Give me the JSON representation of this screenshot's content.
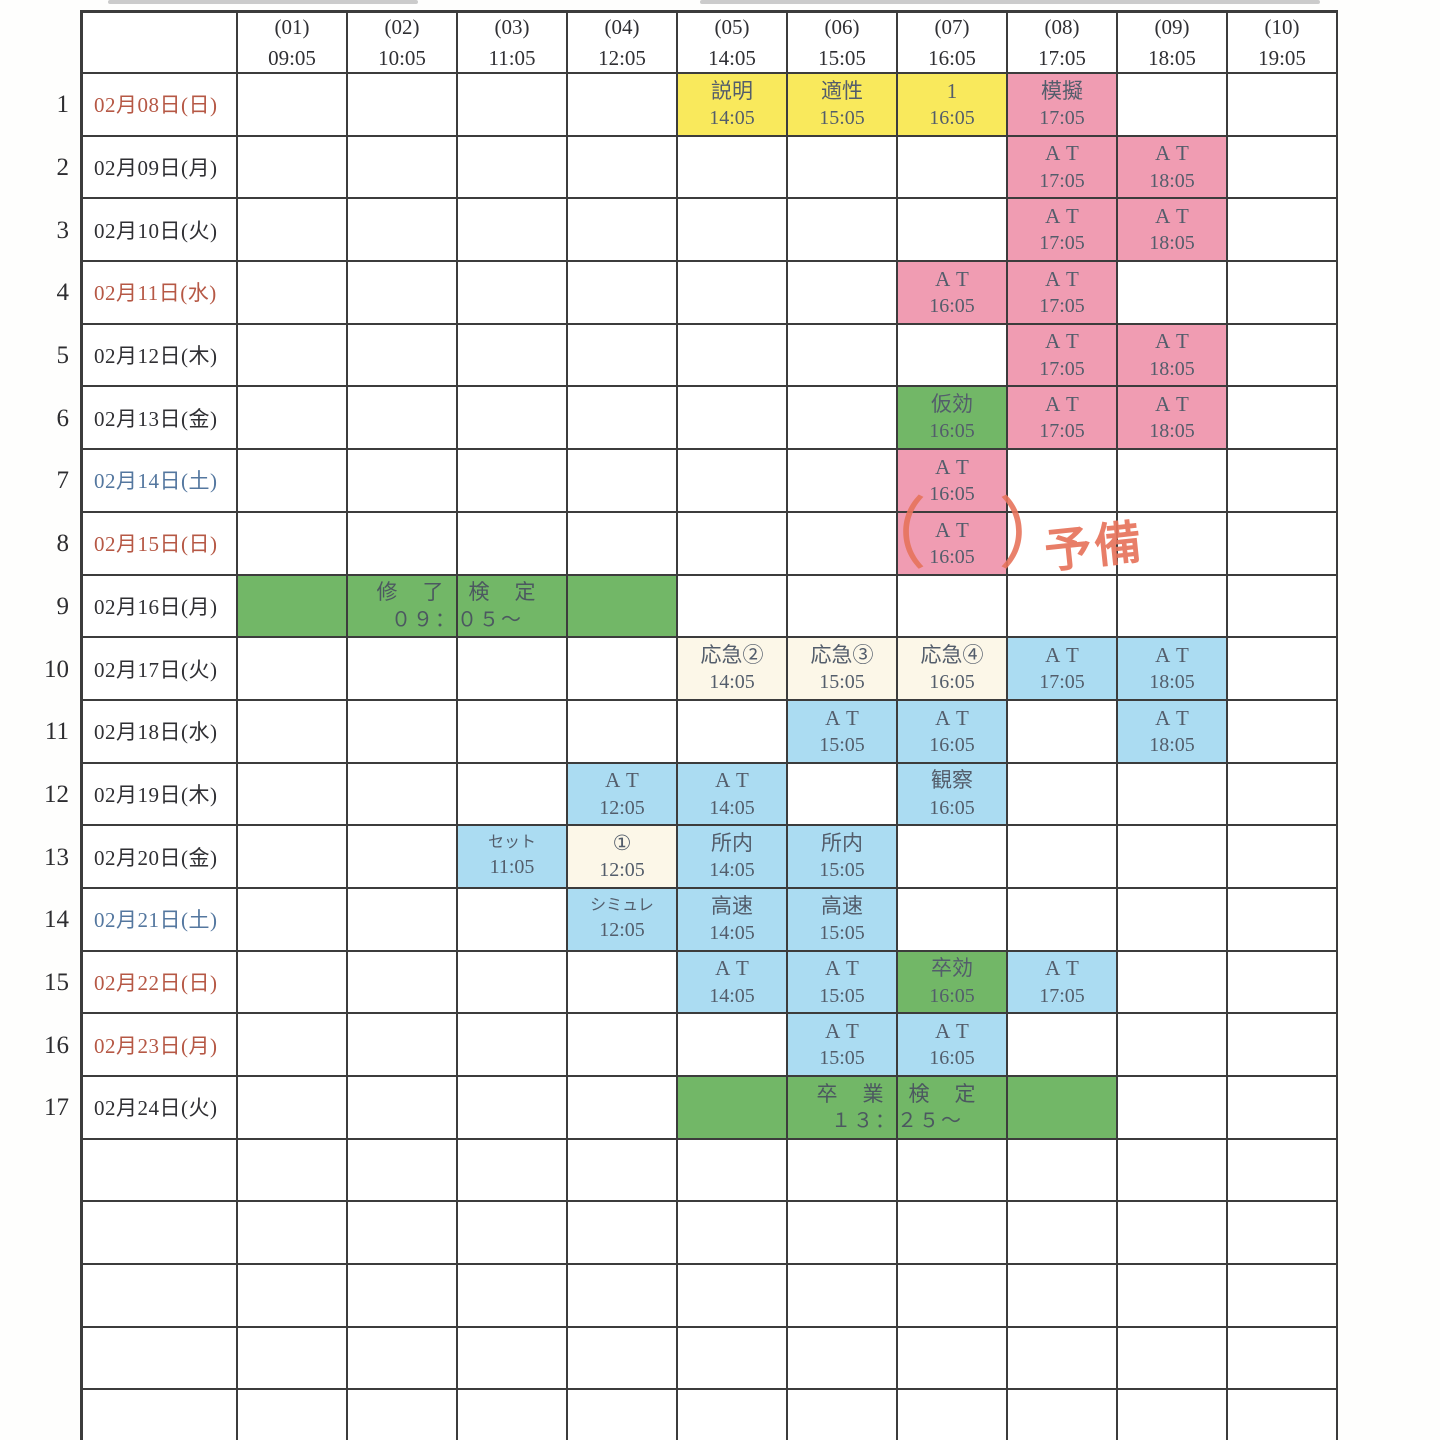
{
  "table": {
    "columns": [
      {
        "no": "(01)",
        "time": "09:05"
      },
      {
        "no": "(02)",
        "time": "10:05"
      },
      {
        "no": "(03)",
        "time": "11:05"
      },
      {
        "no": "(04)",
        "time": "12:05"
      },
      {
        "no": "(05)",
        "time": "14:05"
      },
      {
        "no": "(06)",
        "time": "15:05"
      },
      {
        "no": "(07)",
        "time": "16:05"
      },
      {
        "no": "(08)",
        "time": "17:05"
      },
      {
        "no": "(09)",
        "time": "18:05"
      },
      {
        "no": "(10)",
        "time": "19:05"
      }
    ],
    "rows": [
      {
        "num": "1",
        "date": "02月08日(日)",
        "day": "red",
        "cells": [
          {
            "col": 5,
            "label": "説明",
            "time": "14:05",
            "bg": "yellow"
          },
          {
            "col": 6,
            "label": "適性",
            "time": "15:05",
            "bg": "yellow"
          },
          {
            "col": 7,
            "label": "1",
            "time": "16:05",
            "bg": "yellow"
          },
          {
            "col": 8,
            "label": "模擬",
            "time": "17:05",
            "bg": "pink"
          }
        ]
      },
      {
        "num": "2",
        "date": "02月09日(月)",
        "day": "black",
        "cells": [
          {
            "col": 8,
            "label": "AT",
            "time": "17:05",
            "bg": "pink"
          },
          {
            "col": 9,
            "label": "AT",
            "time": "18:05",
            "bg": "pink"
          }
        ]
      },
      {
        "num": "3",
        "date": "02月10日(火)",
        "day": "black",
        "cells": [
          {
            "col": 8,
            "label": "AT",
            "time": "17:05",
            "bg": "pink"
          },
          {
            "col": 9,
            "label": "AT",
            "time": "18:05",
            "bg": "pink"
          }
        ]
      },
      {
        "num": "4",
        "date": "02月11日(水)",
        "day": "red",
        "cells": [
          {
            "col": 7,
            "label": "AT",
            "time": "16:05",
            "bg": "pink"
          },
          {
            "col": 8,
            "label": "AT",
            "time": "17:05",
            "bg": "pink"
          }
        ]
      },
      {
        "num": "5",
        "date": "02月12日(木)",
        "day": "black",
        "cells": [
          {
            "col": 8,
            "label": "AT",
            "time": "17:05",
            "bg": "pink"
          },
          {
            "col": 9,
            "label": "AT",
            "time": "18:05",
            "bg": "pink"
          }
        ]
      },
      {
        "num": "6",
        "date": "02月13日(金)",
        "day": "black",
        "cells": [
          {
            "col": 7,
            "label": "仮効",
            "time": "16:05",
            "bg": "green"
          },
          {
            "col": 8,
            "label": "AT",
            "time": "17:05",
            "bg": "pink"
          },
          {
            "col": 9,
            "label": "AT",
            "time": "18:05",
            "bg": "pink"
          }
        ]
      },
      {
        "num": "7",
        "date": "02月14日(土)",
        "day": "blue",
        "cells": [
          {
            "col": 7,
            "label": "AT",
            "time": "16:05",
            "bg": "pink"
          }
        ]
      },
      {
        "num": "8",
        "date": "02月15日(日)",
        "day": "red",
        "cells": [
          {
            "col": 7,
            "label": "AT",
            "time": "16:05",
            "bg": "pink"
          }
        ]
      },
      {
        "num": "9",
        "date": "02月16日(月)",
        "day": "black",
        "span": {
          "start": 1,
          "cols": 4,
          "label": "修　了　検　定",
          "time": "０９：０５～",
          "bg": "green"
        }
      },
      {
        "num": "10",
        "date": "02月17日(火)",
        "day": "black",
        "cells": [
          {
            "col": 5,
            "label": "応急②",
            "time": "14:05",
            "bg": "cream"
          },
          {
            "col": 6,
            "label": "応急③",
            "time": "15:05",
            "bg": "cream"
          },
          {
            "col": 7,
            "label": "応急④",
            "time": "16:05",
            "bg": "cream"
          },
          {
            "col": 8,
            "label": "AT",
            "time": "17:05",
            "bg": "blue"
          },
          {
            "col": 9,
            "label": "AT",
            "time": "18:05",
            "bg": "blue"
          }
        ]
      },
      {
        "num": "11",
        "date": "02月18日(水)",
        "day": "black",
        "cells": [
          {
            "col": 6,
            "label": "AT",
            "time": "15:05",
            "bg": "blue"
          },
          {
            "col": 7,
            "label": "AT",
            "time": "16:05",
            "bg": "blue"
          },
          {
            "col": 9,
            "label": "AT",
            "time": "18:05",
            "bg": "blue"
          }
        ]
      },
      {
        "num": "12",
        "date": "02月19日(木)",
        "day": "black",
        "cells": [
          {
            "col": 4,
            "label": "AT",
            "time": "12:05",
            "bg": "blue"
          },
          {
            "col": 5,
            "label": "AT",
            "time": "14:05",
            "bg": "blue"
          },
          {
            "col": 7,
            "label": "観察",
            "time": "16:05",
            "bg": "blue"
          }
        ]
      },
      {
        "num": "13",
        "date": "02月20日(金)",
        "day": "black",
        "cells": [
          {
            "col": 3,
            "label": "セット",
            "time": "11:05",
            "bg": "blue",
            "small": true
          },
          {
            "col": 4,
            "label": "①",
            "time": "12:05",
            "bg": "cream"
          },
          {
            "col": 5,
            "label": "所内",
            "time": "14:05",
            "bg": "blue"
          },
          {
            "col": 6,
            "label": "所内",
            "time": "15:05",
            "bg": "blue"
          }
        ]
      },
      {
        "num": "14",
        "date": "02月21日(土)",
        "day": "blue",
        "cells": [
          {
            "col": 4,
            "label": "シミュレ",
            "time": "12:05",
            "bg": "blue",
            "small": true
          },
          {
            "col": 5,
            "label": "高速",
            "time": "14:05",
            "bg": "blue"
          },
          {
            "col": 6,
            "label": "高速",
            "time": "15:05",
            "bg": "blue"
          }
        ]
      },
      {
        "num": "15",
        "date": "02月22日(日)",
        "day": "red",
        "cells": [
          {
            "col": 5,
            "label": "AT",
            "time": "14:05",
            "bg": "blue"
          },
          {
            "col": 6,
            "label": "AT",
            "time": "15:05",
            "bg": "blue"
          },
          {
            "col": 7,
            "label": "卒効",
            "time": "16:05",
            "bg": "green"
          },
          {
            "col": 8,
            "label": "AT",
            "time": "17:05",
            "bg": "blue"
          }
        ]
      },
      {
        "num": "16",
        "date": "02月23日(月)",
        "day": "red",
        "cells": [
          {
            "col": 6,
            "label": "AT",
            "time": "15:05",
            "bg": "blue"
          },
          {
            "col": 7,
            "label": "AT",
            "time": "16:05",
            "bg": "blue"
          }
        ]
      },
      {
        "num": "17",
        "date": "02月24日(火)",
        "day": "black",
        "span": {
          "start": 5,
          "cols": 4,
          "label": "卒　業　検　定",
          "time": "１３：２５～",
          "bg": "green"
        }
      }
    ],
    "empty_rows": 5,
    "annotation": {
      "open": "（",
      "close": "）",
      "word": "予備"
    },
    "colors": {
      "yellow": "#f9e95c",
      "pink": "#f09cb2",
      "green": "#72b767",
      "blue": "#abdcf2",
      "cream": "#fcf7e8",
      "annotation": "#e7745c",
      "grid": "#3c3c3c",
      "date_red": "#b65845",
      "date_blue": "#54779f"
    }
  }
}
